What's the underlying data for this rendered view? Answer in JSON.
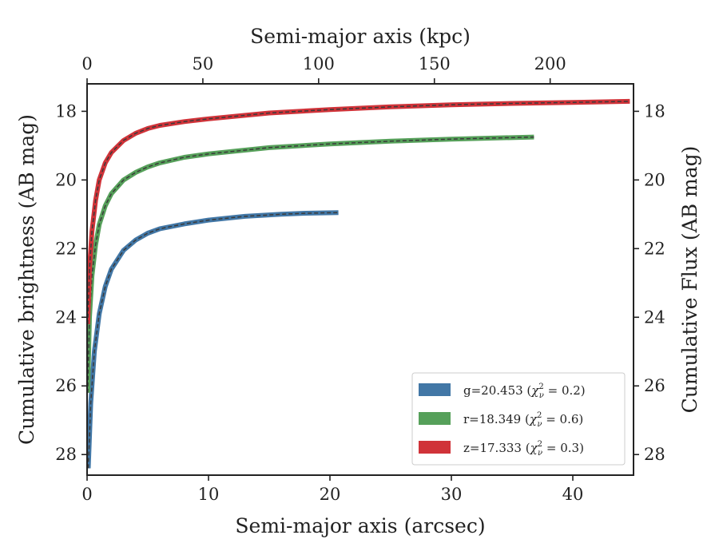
{
  "chart_data": {
    "type": "line",
    "title": "",
    "xlabel": "Semi-major axis (arcsec)",
    "xlabel_top": "Semi-major axis (kpc)",
    "ylabel": "Cumulative brightness (AB mag)",
    "ylabel_right": "Cumulative Flux (AB mag)",
    "xlim": [
      0,
      45
    ],
    "xlim_top": [
      0,
      236
    ],
    "ylim": [
      28.6,
      17.2
    ],
    "y_inverted": true,
    "x_ticks": [
      0,
      10,
      20,
      30,
      40
    ],
    "x_ticks_top": [
      0,
      50,
      100,
      150,
      200
    ],
    "y_ticks": [
      18,
      20,
      22,
      24,
      26,
      28
    ],
    "grid": false,
    "legend_position": "lower-right",
    "series": [
      {
        "name": "g=20.453 (χ²_ν = 0.2)",
        "legend": {
          "prefix": "g=20.453 (",
          "chi": "χ",
          "sup": "2",
          "sub": "ν",
          "suffix": " = 0.2)"
        },
        "color": "#4277a6",
        "x": [
          0.1,
          0.3,
          0.6,
          1.0,
          1.5,
          2,
          3,
          4,
          5,
          6,
          8,
          10,
          13,
          16,
          18,
          20.7
        ],
        "y": [
          28.4,
          26.5,
          25.0,
          23.9,
          23.1,
          22.6,
          22.05,
          21.75,
          21.55,
          21.42,
          21.28,
          21.17,
          21.06,
          21.0,
          20.97,
          20.95
        ]
      },
      {
        "name": "r=18.349 (χ²_ν = 0.6)",
        "legend": {
          "prefix": "r=18.349 (",
          "chi": "χ",
          "sup": "2",
          "sub": "ν",
          "suffix": " = 0.6)"
        },
        "color": "#56a05a",
        "x": [
          0.05,
          0.2,
          0.4,
          0.7,
          1.0,
          1.5,
          2,
          3,
          4,
          5,
          6,
          8,
          10,
          15,
          20,
          25,
          30,
          36.8
        ],
        "y": [
          26.2,
          24.0,
          22.8,
          21.9,
          21.3,
          20.75,
          20.4,
          20.0,
          19.78,
          19.62,
          19.5,
          19.34,
          19.24,
          19.06,
          18.95,
          18.87,
          18.81,
          18.75
        ]
      },
      {
        "name": "z=17.333 (χ²_ν = 0.3)",
        "legend": {
          "prefix": "z=17.333 (",
          "chi": "χ",
          "sup": "2",
          "sub": "ν",
          "suffix": " = 0.3)"
        },
        "color": "#d03339",
        "x": [
          0.05,
          0.2,
          0.4,
          0.7,
          1.0,
          1.5,
          2,
          3,
          4,
          5,
          6,
          8,
          10,
          15,
          20,
          25,
          30,
          35,
          40,
          44.7
        ],
        "y": [
          24.2,
          22.6,
          21.5,
          20.6,
          20.0,
          19.5,
          19.2,
          18.85,
          18.64,
          18.5,
          18.41,
          18.3,
          18.22,
          18.05,
          17.95,
          17.87,
          17.81,
          17.77,
          17.74,
          17.71
        ]
      }
    ]
  }
}
